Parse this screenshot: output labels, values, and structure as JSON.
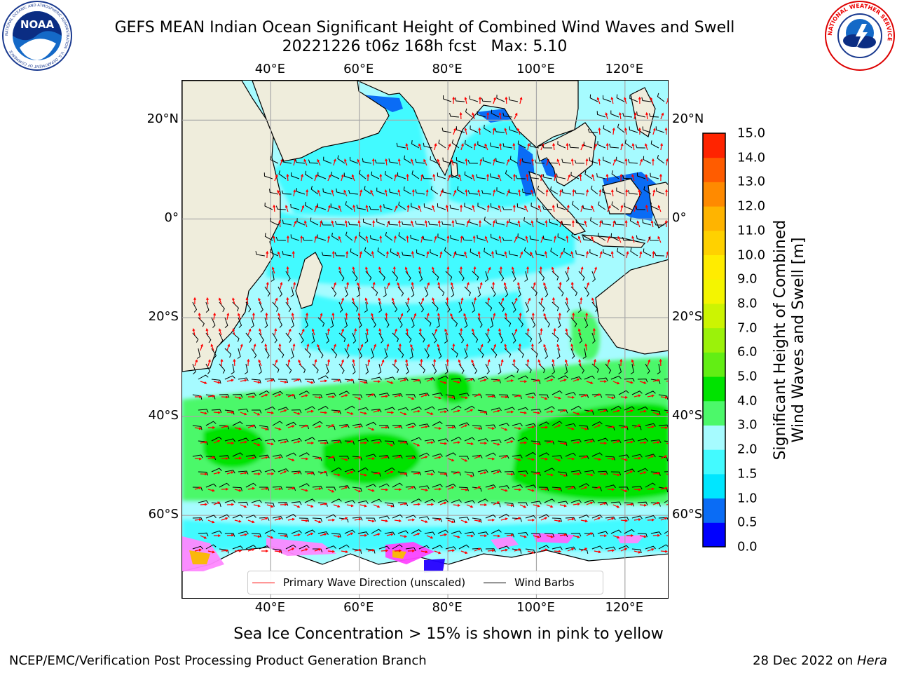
{
  "title": {
    "line1": "GEFS MEAN Indian Ocean Significant Height of Combined Wind Waves and Swell",
    "line2": "20221226 t06z 168h fcst   Max: 5.10"
  },
  "logos": {
    "noaa_text": "NOAA",
    "noaa_ring_text": "NATIONAL OCEANIC AND ATMOSPHERIC ADMINISTRATION · U.S. DEPARTMENT OF COMMERCE",
    "nws_ring_text": "NATIONAL WEATHER SERVICE"
  },
  "map": {
    "lon_range": [
      20,
      130
    ],
    "lat_range": [
      -77,
      28
    ],
    "lon_labels": [
      "40°E",
      "60°E",
      "80°E",
      "100°E",
      "120°E"
    ],
    "lat_labels_left": [
      "20°N",
      "0°",
      "20°S",
      "40°S",
      "60°S"
    ],
    "lat_labels_right": [
      "20°N",
      "0°",
      "20°S",
      "40°S",
      "60°S"
    ],
    "grid": true,
    "land_color": "#efeddc",
    "ocean_color": "#a6fbff"
  },
  "colorbar": {
    "label_line1": "Significant Height of Combined",
    "label_line2": "Wind Waves and Swell [m]",
    "ticks": [
      "0.0",
      "0.5",
      "1.0",
      "1.5",
      "2.0",
      "3.0",
      "4.0",
      "5.0",
      "6.0",
      "7.0",
      "8.0",
      "9.0",
      "10.0",
      "11.0",
      "12.0",
      "13.0",
      "14.0",
      "15.0"
    ],
    "colors": [
      "#0000ff",
      "#0a6cf5",
      "#00e6ff",
      "#43faff",
      "#a6fbff",
      "#4cf86a",
      "#00e300",
      "#62ee14",
      "#9bf20a",
      "#ccf402",
      "#f4f500",
      "#ffec00",
      "#ffd100",
      "#ffb400",
      "#ff8a00",
      "#ff5c00",
      "#ff2400"
    ]
  },
  "legend": {
    "wave_direction": "Primary Wave Direction (unscaled)",
    "wind_barbs": "Wind Barbs",
    "wave_color": "#ff0000",
    "barb_color": "#000000"
  },
  "caption": "Sea Ice Concentration > 15% is shown in pink to yellow",
  "footer": {
    "left": "NCEP/EMC/Verification Post Processing Product Generation Branch",
    "right_date": "28 Dec 2022 on",
    "right_machine": "Hera"
  }
}
